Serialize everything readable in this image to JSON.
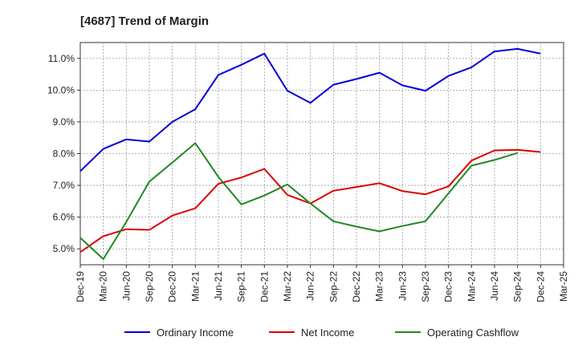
{
  "chart_data": {
    "type": "line",
    "title": "[4687]  Trend of Margin",
    "xlabel": "",
    "ylabel": "",
    "categories": [
      "Dec-19",
      "Mar-20",
      "Jun-20",
      "Sep-20",
      "Dec-20",
      "Mar-21",
      "Jun-21",
      "Sep-21",
      "Dec-21",
      "Mar-22",
      "Jun-22",
      "Sep-22",
      "Dec-22",
      "Mar-23",
      "Jun-23",
      "Sep-23",
      "Dec-23",
      "Mar-24",
      "Jun-24",
      "Sep-24",
      "Dec-24",
      "Mar-25"
    ],
    "ylim": [
      4.5,
      11.5
    ],
    "yticks": [
      5.0,
      6.0,
      7.0,
      8.0,
      9.0,
      10.0,
      11.0
    ],
    "ytick_labels": [
      "5.0%",
      "6.0%",
      "7.0%",
      "8.0%",
      "9.0%",
      "10.0%",
      "11.0%"
    ],
    "grid": true,
    "legend_position": "bottom",
    "series": [
      {
        "name": "Ordinary Income",
        "color": "#0000dd",
        "values": [
          7.45,
          8.15,
          8.45,
          8.38,
          9.0,
          9.4,
          10.48,
          10.8,
          11.15,
          9.98,
          9.6,
          10.17,
          10.35,
          10.55,
          10.15,
          9.98,
          10.45,
          10.72,
          11.22,
          11.3,
          11.15,
          null
        ]
      },
      {
        "name": "Net Income",
        "color": "#dd0000",
        "values": [
          4.9,
          5.4,
          5.62,
          5.6,
          6.05,
          6.28,
          7.05,
          7.25,
          7.52,
          6.7,
          6.43,
          6.83,
          6.95,
          7.07,
          6.82,
          6.72,
          6.97,
          7.78,
          8.1,
          8.12,
          8.05,
          null
        ]
      },
      {
        "name": "Operating Cashflow",
        "color": "#228822",
        "values": [
          5.35,
          4.68,
          5.85,
          7.12,
          7.72,
          8.33,
          7.27,
          6.4,
          6.68,
          7.03,
          6.43,
          5.87,
          5.7,
          5.55,
          5.72,
          5.87,
          6.75,
          7.62,
          7.8,
          8.02,
          null,
          null
        ]
      }
    ]
  }
}
